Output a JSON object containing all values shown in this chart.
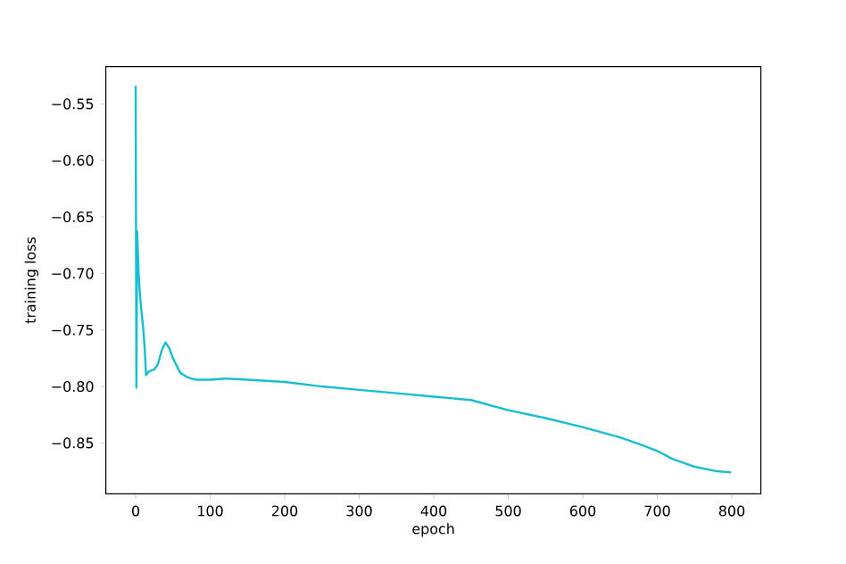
{
  "chart_data": {
    "type": "line",
    "xlabel": "epoch",
    "ylabel": "training loss",
    "x": [
      0,
      1,
      2,
      4,
      6,
      8,
      10,
      12,
      14,
      17,
      20,
      25,
      30,
      35,
      40,
      45,
      50,
      60,
      70,
      80,
      100,
      120,
      150,
      200,
      250,
      300,
      350,
      400,
      450,
      500,
      550,
      600,
      650,
      680,
      700,
      720,
      750,
      780,
      799
    ],
    "series": [
      {
        "color": "#17becf",
        "values": [
          -0.534,
          -0.801,
          -0.663,
          -0.7,
          -0.721,
          -0.735,
          -0.747,
          -0.765,
          -0.79,
          -0.787,
          -0.786,
          -0.785,
          -0.78,
          -0.768,
          -0.761,
          -0.766,
          -0.775,
          -0.788,
          -0.792,
          -0.794,
          -0.794,
          -0.793,
          -0.794,
          -0.796,
          -0.8,
          -0.803,
          -0.806,
          -0.809,
          -0.812,
          -0.821,
          -0.828,
          -0.836,
          -0.845,
          -0.852,
          -0.857,
          -0.864,
          -0.871,
          -0.875,
          -0.876
        ]
      }
    ],
    "xlim": [
      -40,
      839
    ],
    "ylim": [
      -0.895,
      -0.517
    ],
    "xticks": [
      0,
      100,
      200,
      300,
      400,
      500,
      600,
      700,
      800
    ],
    "yticks": [
      {
        "value": -0.85,
        "label": "−0.85"
      },
      {
        "value": -0.8,
        "label": "−0.80"
      },
      {
        "value": -0.75,
        "label": "−0.75"
      },
      {
        "value": -0.7,
        "label": "−0.70"
      },
      {
        "value": -0.65,
        "label": "−0.65"
      },
      {
        "value": -0.6,
        "label": "−0.60"
      },
      {
        "value": -0.55,
        "label": "−0.55"
      }
    ],
    "grid": false,
    "marker": "none",
    "line_style": "solid"
  }
}
